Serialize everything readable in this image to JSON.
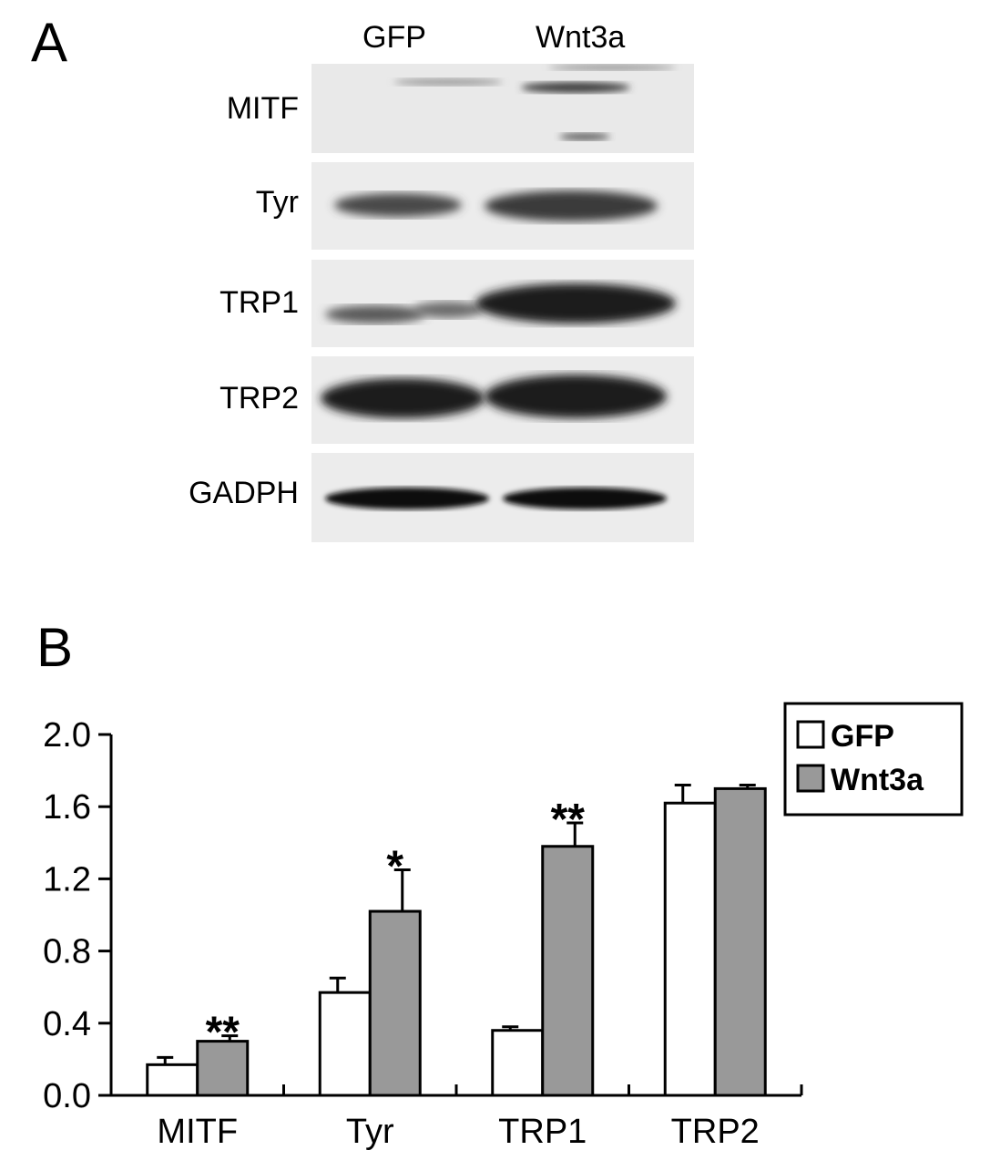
{
  "panel_a": {
    "letter": "A",
    "lanes": [
      "GFP",
      "Wnt3a"
    ],
    "rows": [
      {
        "label": "MITF"
      },
      {
        "label": "Tyr"
      },
      {
        "label": "TRP1"
      },
      {
        "label": "TRP2"
      },
      {
        "label": "GADPH"
      }
    ]
  },
  "panel_b": {
    "letter": "B"
  },
  "chart_data": {
    "type": "bar",
    "categories": [
      "MITF",
      "Tyr",
      "TRP1",
      "TRP2"
    ],
    "series": [
      {
        "name": "GFP",
        "values": [
          0.17,
          0.57,
          0.36,
          1.62
        ],
        "errors": [
          0.04,
          0.08,
          0.02,
          0.1
        ],
        "color": "#ffffff"
      },
      {
        "name": "Wnt3a",
        "values": [
          0.3,
          1.02,
          1.38,
          1.7
        ],
        "errors": [
          0.03,
          0.23,
          0.13,
          0.02
        ],
        "color": "#999999"
      }
    ],
    "significance": [
      {
        "category": "MITF",
        "label": "**"
      },
      {
        "category": "Tyr",
        "label": "*"
      },
      {
        "category": "TRP1",
        "label": "**"
      }
    ],
    "yticks": [
      "0.0",
      "0.4",
      "0.8",
      "1.2",
      "1.6",
      "2.0"
    ],
    "ylim": [
      0,
      2.0
    ],
    "legend_position": "top-right",
    "grid": false
  }
}
